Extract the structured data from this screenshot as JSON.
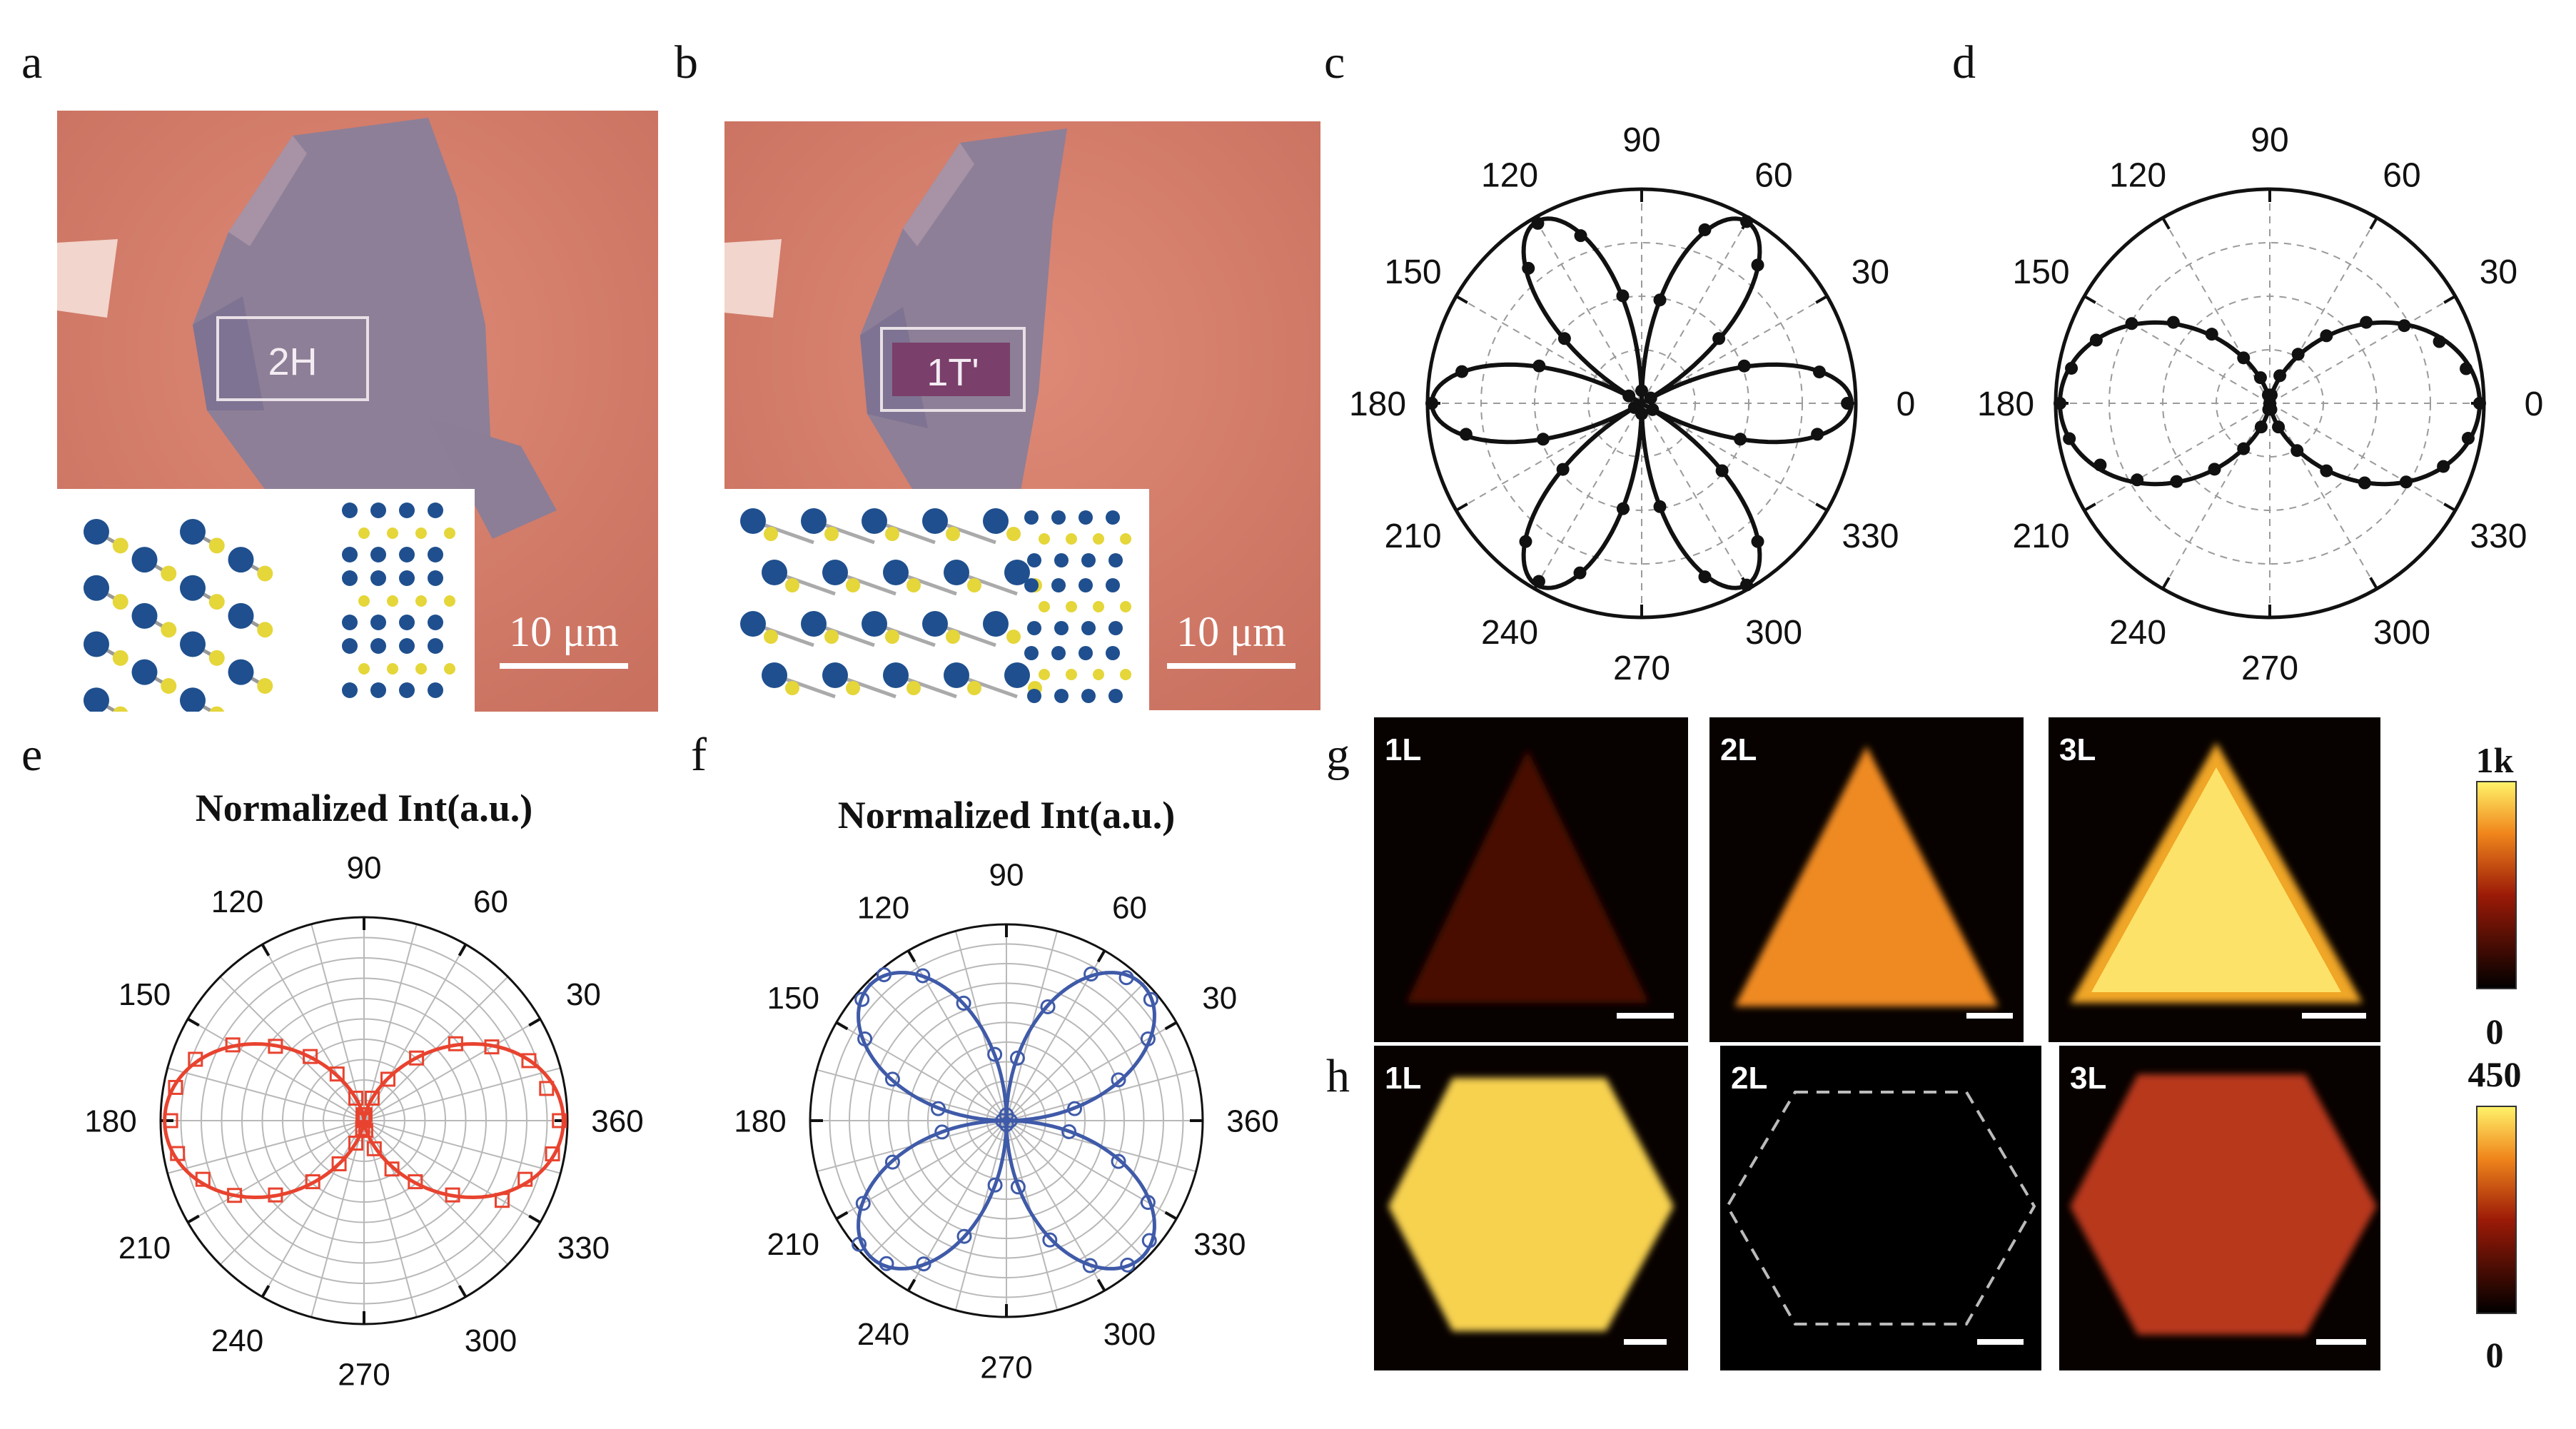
{
  "labels": {
    "a": "a",
    "b": "b",
    "c": "c",
    "d": "d",
    "e": "e",
    "f": "f",
    "g": "g",
    "h": "h"
  },
  "panel_a": {
    "region": "2H",
    "scale": "10 μm"
  },
  "panel_b": {
    "region": "1T'",
    "scale": "10 μm"
  },
  "polar_angles": [
    "0",
    "30",
    "60",
    "90",
    "120",
    "150",
    "180",
    "210",
    "240",
    "270",
    "300",
    "330"
  ],
  "polar_angles_ef": [
    "360",
    "30",
    "60",
    "90",
    "120",
    "150",
    "180",
    "210",
    "240",
    "270",
    "300",
    "330"
  ],
  "panel_e": {
    "title": "Normalized Int(a.u.)"
  },
  "panel_f": {
    "title": "Normalized Int(a.u.)"
  },
  "panel_g": {
    "tiles": [
      "1L",
      "2L",
      "3L"
    ],
    "cbar_max": "1k",
    "cbar_min": "0"
  },
  "panel_h": {
    "tiles": [
      "1L",
      "2L",
      "3L"
    ],
    "cbar_max": "450",
    "cbar_min": "0"
  },
  "colors": {
    "red": "#e8432f",
    "blue": "#3f5aa8",
    "substrate": "#d9826f",
    "flake": "#8e7f95"
  },
  "chart_data": [
    {
      "type": "scatter",
      "panel": "c",
      "polar": true,
      "title": "",
      "model": "r = |cos(3θ)|",
      "angles_deg": [
        0,
        10,
        20,
        30,
        40,
        50,
        60,
        70,
        80,
        90,
        100,
        110,
        120,
        130,
        140,
        150,
        160,
        170,
        180,
        190,
        200,
        210,
        220,
        230,
        240,
        250,
        260,
        270,
        280,
        290,
        300,
        310,
        320,
        330,
        340,
        350
      ],
      "values": [
        0.98,
        0.86,
        0.52,
        0.05,
        0.48,
        0.86,
        1.0,
        0.88,
        0.5,
        0.06,
        0.52,
        0.85,
        0.99,
        0.84,
        0.48,
        0.07,
        0.52,
        0.87,
        1.0,
        0.85,
        0.5,
        0.04,
        0.49,
        0.86,
        0.98,
        0.86,
        0.51,
        0.05,
        0.5,
        0.88,
        1.0,
        0.86,
        0.5,
        0.06,
        0.5,
        0.85
      ]
    },
    {
      "type": "scatter",
      "panel": "d",
      "polar": true,
      "title": "",
      "model": "r = cos²θ",
      "angles_deg": [
        0,
        10,
        20,
        30,
        40,
        50,
        60,
        70,
        80,
        90,
        100,
        110,
        120,
        130,
        140,
        150,
        160,
        170,
        180,
        190,
        200,
        210,
        220,
        230,
        240,
        250,
        260,
        270,
        280,
        290,
        300,
        310,
        320,
        330,
        340,
        350
      ],
      "values": [
        1.0,
        0.95,
        0.86,
        0.74,
        0.6,
        0.42,
        0.27,
        0.14,
        0.04,
        0.0,
        0.04,
        0.13,
        0.25,
        0.43,
        0.6,
        0.76,
        0.88,
        0.96,
        1.0,
        0.97,
        0.86,
        0.73,
        0.58,
        0.41,
        0.25,
        0.12,
        0.03,
        0.01,
        0.03,
        0.12,
        0.26,
        0.42,
        0.59,
        0.75,
        0.88,
        0.96
      ]
    },
    {
      "type": "scatter",
      "panel": "e",
      "polar": true,
      "title": "Normalized Int(a.u.)",
      "model": "r = cos²θ",
      "series_color": "red",
      "angles_deg": [
        0,
        10,
        20,
        30,
        40,
        50,
        60,
        70,
        80,
        90,
        100,
        110,
        120,
        130,
        140,
        150,
        160,
        170,
        180,
        190,
        200,
        210,
        220,
        230,
        240,
        250,
        260,
        270,
        280,
        290,
        300,
        310,
        320,
        330,
        340,
        350
      ],
      "values": [
        0.98,
        0.93,
        0.88,
        0.74,
        0.6,
        0.41,
        0.24,
        0.12,
        0.03,
        0.01,
        0.03,
        0.12,
        0.27,
        0.42,
        0.58,
        0.76,
        0.9,
        0.96,
        0.97,
        0.95,
        0.86,
        0.75,
        0.58,
        0.4,
        0.25,
        0.12,
        0.04,
        0.0,
        0.05,
        0.15,
        0.28,
        0.4,
        0.58,
        0.8,
        0.86,
        0.96
      ]
    },
    {
      "type": "scatter",
      "panel": "f",
      "polar": true,
      "title": "Normalized Int(a.u.)",
      "model": "r = |sin(2θ)|",
      "series_color": "blue",
      "angles_deg": [
        0,
        10,
        20,
        30,
        40,
        50,
        60,
        70,
        80,
        90,
        100,
        110,
        120,
        130,
        140,
        150,
        160,
        170,
        180,
        190,
        200,
        210,
        220,
        230,
        240,
        250,
        260,
        270,
        280,
        290,
        300,
        310,
        320,
        330,
        340,
        350
      ],
      "values": [
        0.02,
        0.36,
        0.62,
        0.85,
        0.98,
        0.97,
        0.88,
        0.63,
        0.33,
        0.03,
        0.35,
        0.65,
        0.87,
        0.99,
        0.98,
        0.85,
        0.63,
        0.36,
        0.02,
        0.34,
        0.63,
        0.86,
        1.0,
        0.97,
        0.86,
        0.64,
        0.34,
        0.02,
        0.35,
        0.66,
        0.87,
        0.98,
        0.97,
        0.85,
        0.62,
        0.33
      ]
    }
  ]
}
